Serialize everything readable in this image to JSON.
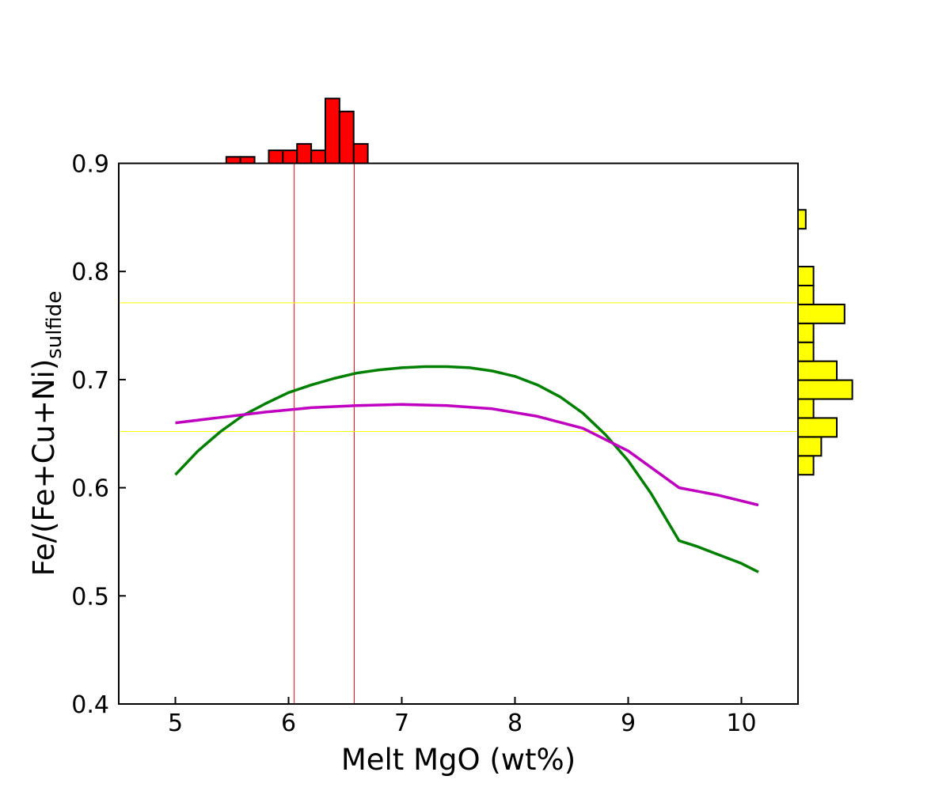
{
  "chart_data": {
    "type": "line",
    "title": "",
    "xlabel": "Melt MgO (wt%)",
    "ylabel": "Fe/(Fe+Cu+Ni)",
    "ylabel_subscript": "sulfide",
    "xlim": [
      4.5,
      10.5
    ],
    "ylim": [
      0.4,
      0.9
    ],
    "xticks": [
      5,
      6,
      7,
      8,
      9,
      10
    ],
    "xtick_labels": [
      "5",
      "6",
      "7",
      "8",
      "9",
      "10"
    ],
    "yticks": [
      0.4,
      0.5,
      0.6,
      0.7,
      0.8,
      0.9
    ],
    "ytick_labels": [
      "0.4",
      "0.5",
      "0.6",
      "0.7",
      "0.8",
      "0.9"
    ],
    "grid": false,
    "legend": "none",
    "series": [
      {
        "color": "#008000",
        "x": [
          5.0,
          5.2,
          5.4,
          5.6,
          5.8,
          6.0,
          6.2,
          6.4,
          6.6,
          6.8,
          7.0,
          7.2,
          7.4,
          7.6,
          7.8,
          8.0,
          8.2,
          8.4,
          8.6,
          8.8,
          9.0,
          9.2,
          9.45,
          9.6,
          9.8,
          10.0,
          10.15
        ],
        "y": [
          0.612,
          0.634,
          0.652,
          0.667,
          0.678,
          0.688,
          0.695,
          0.701,
          0.706,
          0.709,
          0.711,
          0.712,
          0.712,
          0.711,
          0.708,
          0.703,
          0.695,
          0.684,
          0.669,
          0.649,
          0.625,
          0.595,
          0.551,
          0.546,
          0.538,
          0.53,
          0.522
        ]
      },
      {
        "color": "#c000c0",
        "x": [
          5.0,
          5.4,
          5.8,
          6.2,
          6.6,
          7.0,
          7.4,
          7.8,
          8.2,
          8.6,
          9.0,
          9.45,
          9.8,
          10.15
        ],
        "y": [
          0.66,
          0.665,
          0.67,
          0.674,
          0.676,
          0.677,
          0.676,
          0.673,
          0.666,
          0.655,
          0.634,
          0.6,
          0.593,
          0.584
        ]
      }
    ],
    "reference_lines": {
      "vertical": {
        "color": "#ff0000",
        "x": [
          6.05,
          6.58
        ]
      },
      "horizontal": {
        "color": "#ffff00",
        "y": [
          0.771,
          0.652
        ]
      }
    },
    "top_histogram": {
      "color": "#ff0000",
      "bin_edges": [
        5.45,
        5.575,
        5.7,
        5.825,
        5.95,
        6.075,
        6.2,
        6.325,
        6.45,
        6.575,
        6.7
      ],
      "counts": [
        1,
        1,
        0,
        2,
        2,
        3,
        2,
        10,
        8,
        3
      ]
    },
    "right_histogram": {
      "color": "#ffff00",
      "bin_edges": [
        0.612,
        0.6295,
        0.647,
        0.6645,
        0.682,
        0.6995,
        0.717,
        0.7345,
        0.752,
        0.7695,
        0.787,
        0.8045,
        0.822,
        0.8395,
        0.857
      ],
      "counts": [
        2,
        3,
        5,
        2,
        7,
        5,
        2,
        2,
        6,
        2,
        2,
        0,
        0,
        1
      ]
    }
  }
}
